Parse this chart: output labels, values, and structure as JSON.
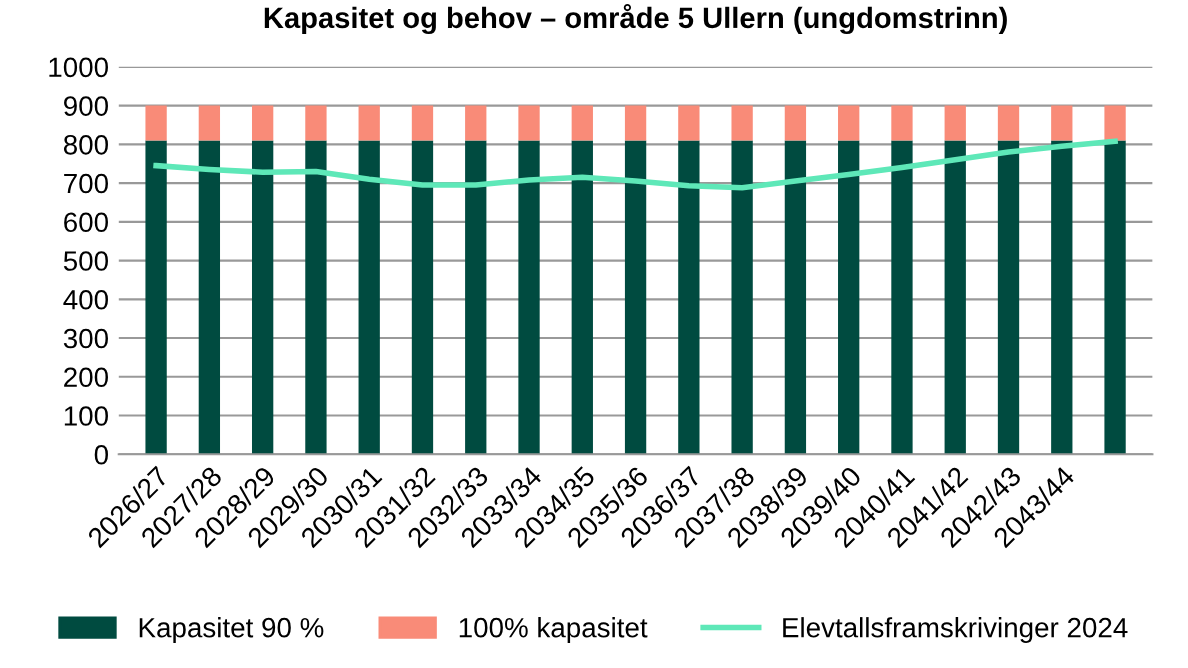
{
  "chart_data": {
    "type": "bar",
    "stacked": true,
    "title": "Kapasitet og behov – område 5 Ullern (ungdomstrinn)",
    "categories": [
      "2026/27",
      "2027/28",
      "2028/29",
      "2029/30",
      "2030/31",
      "2031/32",
      "2032/33",
      "2033/34",
      "2034/35",
      "2035/36",
      "2036/37",
      "2037/38",
      "2038/39",
      "2039/40",
      "2040/41",
      "2041/42",
      "2042/43",
      "2043/44",
      null
    ],
    "series": [
      {
        "name": "Kapasitet 90 %",
        "color": "#004b40",
        "values": [
          810,
          810,
          810,
          810,
          810,
          810,
          810,
          810,
          810,
          810,
          810,
          810,
          810,
          810,
          810,
          810,
          810,
          810,
          810
        ]
      },
      {
        "name": "100% kapasitet",
        "color": "#f98b78",
        "values": [
          90,
          90,
          90,
          90,
          90,
          90,
          90,
          90,
          90,
          90,
          90,
          90,
          90,
          90,
          90,
          90,
          90,
          90,
          90
        ]
      },
      {
        "name": "Elevtallsframskrivinger 2024",
        "type": "line",
        "color": "#5ee8b8",
        "values": [
          745,
          735,
          728,
          730,
          710,
          695,
          695,
          708,
          715,
          705,
          693,
          688,
          705,
          722,
          740,
          760,
          780,
          795,
          808
        ]
      }
    ],
    "ylim": [
      0,
      1000
    ],
    "yticks": [
      0,
      100,
      200,
      300,
      400,
      500,
      600,
      700,
      800,
      900,
      1000
    ],
    "grid": "y",
    "legend": "bottom",
    "marker": "none"
  }
}
